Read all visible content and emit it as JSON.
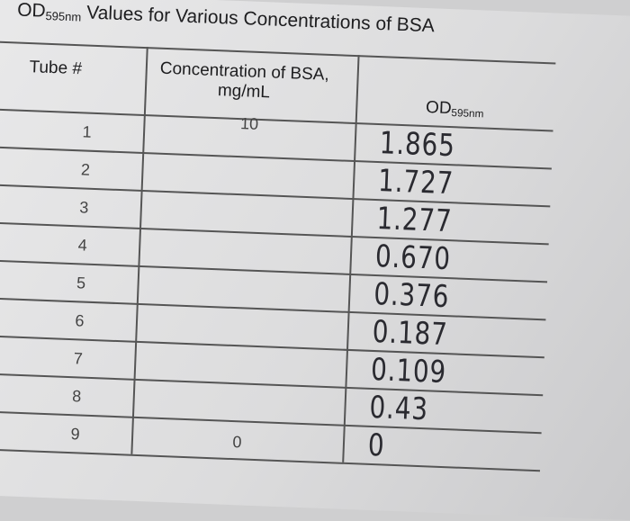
{
  "title": {
    "prefix": "OD",
    "subscript": "595nm",
    "text": "Values for Various Concentrations of BSA"
  },
  "table": {
    "headers": [
      {
        "text": "Tube #"
      },
      {
        "text": "Concentration of BSA, mg/mL"
      },
      {
        "text": "OD",
        "subscript": "595nm"
      }
    ],
    "rows": [
      [
        "1",
        "10",
        "1.865"
      ],
      [
        "2",
        null,
        "1.727"
      ],
      [
        "3",
        null,
        "1.277"
      ],
      [
        "4",
        null,
        "0.670"
      ],
      [
        "5",
        null,
        "0.376"
      ],
      [
        "6",
        null,
        "0.187"
      ],
      [
        "7",
        null,
        "0.109"
      ],
      [
        "8",
        null,
        "0.43"
      ],
      [
        "9",
        "0",
        "0"
      ]
    ]
  }
}
